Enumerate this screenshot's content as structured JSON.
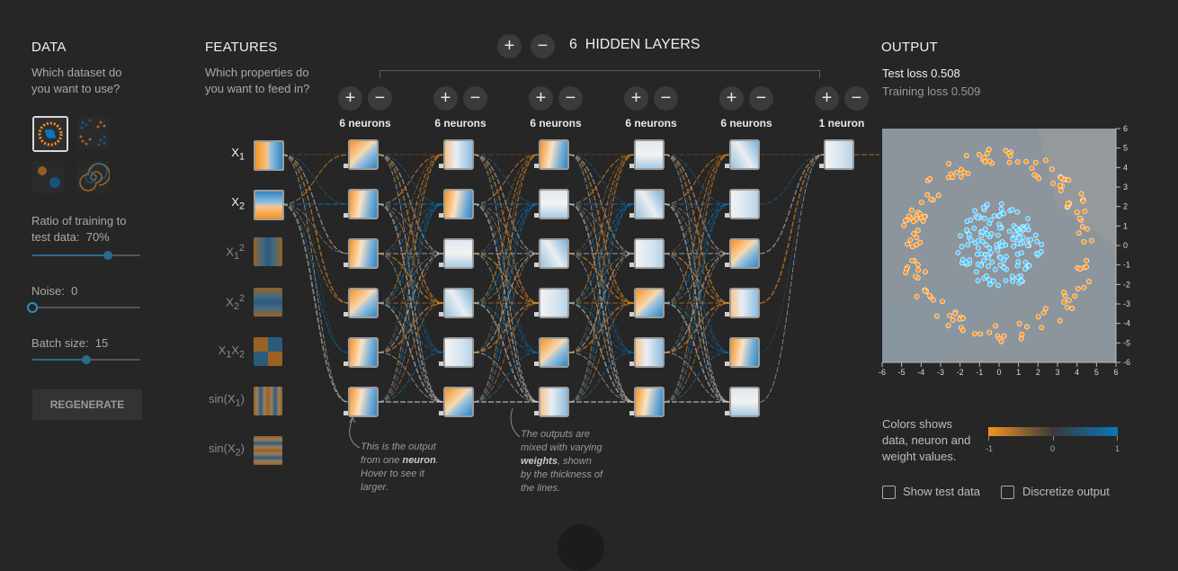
{
  "data": {
    "title": "DATA",
    "question_line1": "Which dataset do",
    "question_line2": "you want to use?",
    "datasets": [
      "circle",
      "xor",
      "gaussian",
      "spiral"
    ],
    "ratio_label": "Ratio of training to",
    "ratio_label2": "test data:",
    "ratio_value": "70%",
    "ratio_fraction": 0.7,
    "noise_label": "Noise:",
    "noise_value": "0",
    "noise_fraction": 0,
    "batch_label": "Batch size:",
    "batch_value": "15",
    "batch_fraction": 0.5,
    "regenerate": "REGENERATE"
  },
  "features": {
    "title": "FEATURES",
    "question_line1": "Which properties do",
    "question_line2": "you want to feed in?",
    "items": [
      {
        "label": "X",
        "sub": "1",
        "sup": "",
        "active": true
      },
      {
        "label": "X",
        "sub": "2",
        "sup": "",
        "active": true
      },
      {
        "label": "X",
        "sub": "1",
        "sup": "2",
        "active": false
      },
      {
        "label": "X",
        "sub": "2",
        "sup": "2",
        "active": false
      },
      {
        "label": "X",
        "sub": "1",
        "label2": "X",
        "sub2": "2",
        "active": false
      },
      {
        "label": "sin(X",
        "sub": "1",
        "suffix": ")",
        "active": false
      },
      {
        "label": "sin(X",
        "sub": "2",
        "suffix": ")",
        "active": false
      }
    ]
  },
  "network": {
    "plus": "+",
    "minus": "−",
    "layer_count": "6",
    "layers_title": "HIDDEN LAYERS",
    "layers": [
      {
        "neurons_label": "6 neurons"
      },
      {
        "neurons_label": "6 neurons"
      },
      {
        "neurons_label": "6 neurons"
      },
      {
        "neurons_label": "6 neurons"
      },
      {
        "neurons_label": "6 neurons"
      },
      {
        "neurons_label": "1 neuron"
      }
    ],
    "note1": [
      "This is the output",
      "from one ",
      "neuron",
      ".",
      "Hover to see it",
      "larger."
    ],
    "note2": [
      "The outputs are",
      "mixed with varying",
      "weights",
      ", shown",
      "by the thickness of",
      "the lines."
    ]
  },
  "output": {
    "title": "OUTPUT",
    "test_loss": "Test loss 0.508",
    "training_loss": "Training loss 0.509",
    "x_ticks": [
      "-6",
      "-5",
      "-4",
      "-3",
      "-2",
      "-1",
      "0",
      "1",
      "2",
      "3",
      "4",
      "5",
      "6"
    ],
    "y_ticks": [
      "6",
      "5",
      "4",
      "3",
      "2",
      "1",
      "0",
      "-1",
      "-2",
      "-3",
      "-4",
      "-5",
      "-6"
    ],
    "legend_line1": "Colors shows",
    "legend_line2": "data, neuron and",
    "legend_line3": "weight values.",
    "scale_min": "-1",
    "scale_mid": "0",
    "scale_max": "1",
    "show_test": "Show test data",
    "discretize": "Discretize output",
    "colors": {
      "orange": "#f59322",
      "blue": "#0877bd",
      "blue_point": "#4fc3f7"
    }
  }
}
